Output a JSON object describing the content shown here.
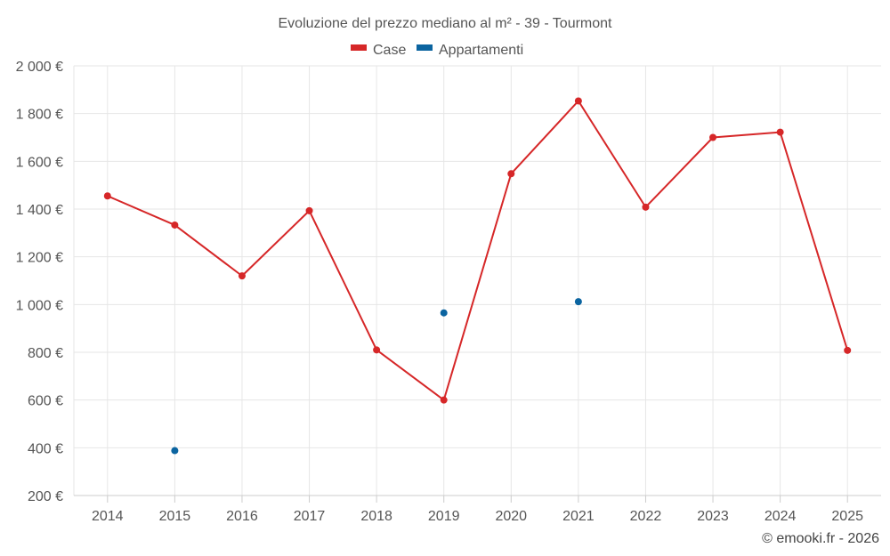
{
  "chart_data": {
    "type": "line",
    "title": "Evoluzione del prezzo mediano al m² - 39 - Tourmont",
    "categories": [
      "2014",
      "2015",
      "2016",
      "2017",
      "2018",
      "2019",
      "2020",
      "2021",
      "2022",
      "2023",
      "2024",
      "2025"
    ],
    "ylim": [
      200,
      2000
    ],
    "yticks": [
      200,
      400,
      600,
      800,
      1000,
      1200,
      1400,
      1600,
      1800,
      2000
    ],
    "ytick_labels": [
      "200 €",
      "400 €",
      "600 €",
      "800 €",
      "1 000 €",
      "1 200 €",
      "1 400 €",
      "1 600 €",
      "1 800 €",
      "2 000 €"
    ],
    "grid": true,
    "legend_position": "top-center",
    "series": [
      {
        "name": "Case",
        "color": "#d62728",
        "style": "line",
        "values": [
          1455,
          1333,
          1120,
          1393,
          810,
          600,
          1548,
          1853,
          1408,
          1700,
          1722,
          808
        ]
      },
      {
        "name": "Appartamenti",
        "color": "#0b64a0",
        "style": "points",
        "values": [
          null,
          388,
          null,
          null,
          null,
          965,
          null,
          1012,
          null,
          null,
          null,
          null
        ]
      }
    ]
  },
  "credit": "© emooki.fr - 2026"
}
